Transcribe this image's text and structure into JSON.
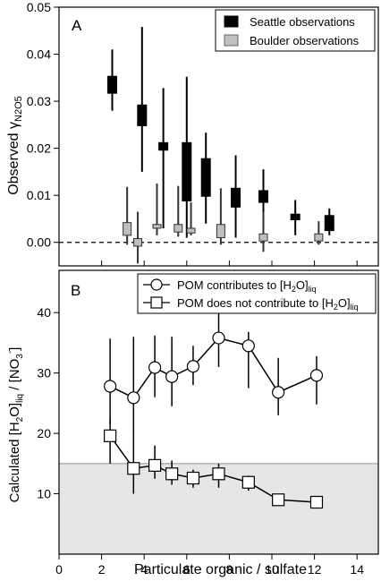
{
  "chart_data": [
    {
      "type": "box",
      "panel_label": "A",
      "xlabel": "",
      "ylabel_main": "Observed γ",
      "ylabel_sub": "N2O5",
      "ylim": [
        -0.005,
        0.05
      ],
      "xlim": [
        0,
        15
      ],
      "yticks": [
        0.0,
        0.01,
        0.02,
        0.03,
        0.04,
        0.05
      ],
      "ytick_labels": [
        "0.00",
        "0.01",
        "0.02",
        "0.03",
        "0.04",
        "0.05"
      ],
      "reference_line_y": 0,
      "legend_position": "top-right",
      "colors": {
        "Seattle observations": "#000000",
        "Boulder observations": "#bfbfbf"
      },
      "series": [
        {
          "name": "Seattle observations",
          "points": [
            {
              "x": 2.5,
              "low": 0.028,
              "q1": 0.0317,
              "q3": 0.0353,
              "high": 0.041
            },
            {
              "x": 3.9,
              "low": 0.015,
              "q1": 0.0248,
              "q3": 0.0292,
              "high": 0.0458
            },
            {
              "x": 4.9,
              "low": 0.003,
              "q1": 0.0196,
              "q3": 0.0212,
              "high": 0.0328
            },
            {
              "x": 6.0,
              "low": 0.001,
              "q1": 0.0088,
              "q3": 0.0212,
              "high": 0.0352
            },
            {
              "x": 6.9,
              "low": 0.004,
              "q1": 0.0098,
              "q3": 0.0178,
              "high": 0.0233
            },
            {
              "x": 8.3,
              "low": 0.001,
              "q1": 0.0075,
              "q3": 0.0115,
              "high": 0.0185
            },
            {
              "x": 9.6,
              "low": 0.003,
              "q1": 0.0085,
              "q3": 0.011,
              "high": 0.0155
            },
            {
              "x": 11.1,
              "low": 0.0015,
              "q1": 0.0048,
              "q3": 0.006,
              "high": 0.009
            },
            {
              "x": 12.7,
              "low": 0.0015,
              "q1": 0.0025,
              "q3": 0.0057,
              "high": 0.0072
            }
          ]
        },
        {
          "name": "Boulder observations",
          "points": [
            {
              "x": 3.2,
              "low": -0.0005,
              "q1": 0.0015,
              "q3": 0.0042,
              "high": 0.0118
            },
            {
              "x": 3.7,
              "low": -0.0045,
              "q1": -0.0008,
              "q3": 0.0008,
              "high": 0.0065
            },
            {
              "x": 4.6,
              "low": 0.0015,
              "q1": 0.003,
              "q3": 0.0038,
              "high": 0.0125
            },
            {
              "x": 5.6,
              "low": 0.0012,
              "q1": 0.0022,
              "q3": 0.0038,
              "high": 0.012
            },
            {
              "x": 6.2,
              "low": 0.0015,
              "q1": 0.002,
              "q3": 0.003,
              "high": 0.0085
            },
            {
              "x": 7.6,
              "low": -0.0005,
              "q1": 0.001,
              "q3": 0.0038,
              "high": 0.0115
            },
            {
              "x": 9.6,
              "low": -0.002,
              "q1": 0.0003,
              "q3": 0.0018,
              "high": 0.0065
            },
            {
              "x": 12.2,
              "low": -0.0005,
              "q1": 0.0003,
              "q3": 0.0018,
              "high": 0.0045
            }
          ]
        }
      ]
    },
    {
      "type": "line",
      "panel_label": "B",
      "xlabel": "Particulate organic / sulfate",
      "ylabel": "Calculated [H2O]liq / [NO3-]",
      "xlim": [
        0,
        15
      ],
      "ylim": [
        0,
        47
      ],
      "xticks": [
        0,
        2,
        4,
        6,
        8,
        10,
        12,
        14
      ],
      "yticks": [
        10,
        20,
        30,
        40
      ],
      "shaded_region_y": [
        0,
        15
      ],
      "legend_position": "top",
      "series": [
        {
          "name_main": "POM contributes to [H",
          "name_sub1": "2",
          "name_mid": "O]",
          "name_sub2": "liq",
          "marker": "circle",
          "x": [
            2.4,
            3.5,
            4.5,
            5.3,
            6.3,
            7.5,
            8.9,
            10.3,
            12.1
          ],
          "y": [
            27.8,
            25.9,
            30.9,
            29.4,
            31.1,
            35.8,
            34.5,
            26.8,
            29.6
          ],
          "y_low": [
            21.5,
            20.0,
            26.0,
            24.5,
            28.0,
            31.0,
            27.5,
            23.0,
            24.8
          ],
          "y_high": [
            35.7,
            36.0,
            36.2,
            36.0,
            34.5,
            40.2,
            36.8,
            32.5,
            32.8
          ]
        },
        {
          "name_main": "POM does not contribute to [H",
          "name_sub1": "2",
          "name_mid": "O]",
          "name_sub2": "liq",
          "marker": "square",
          "x": [
            2.4,
            3.5,
            4.5,
            5.3,
            6.3,
            7.5,
            8.9,
            10.3,
            12.1
          ],
          "y": [
            19.6,
            14.2,
            14.7,
            13.3,
            12.6,
            13.3,
            11.9,
            9.0,
            8.6
          ],
          "y_low": [
            15.0,
            10.0,
            12.5,
            11.5,
            11.0,
            11.0,
            10.5,
            8.0,
            8.0
          ],
          "y_high": [
            22.5,
            20.5,
            18.0,
            15.5,
            14.0,
            15.0,
            13.0,
            9.5,
            9.5
          ]
        }
      ]
    }
  ]
}
